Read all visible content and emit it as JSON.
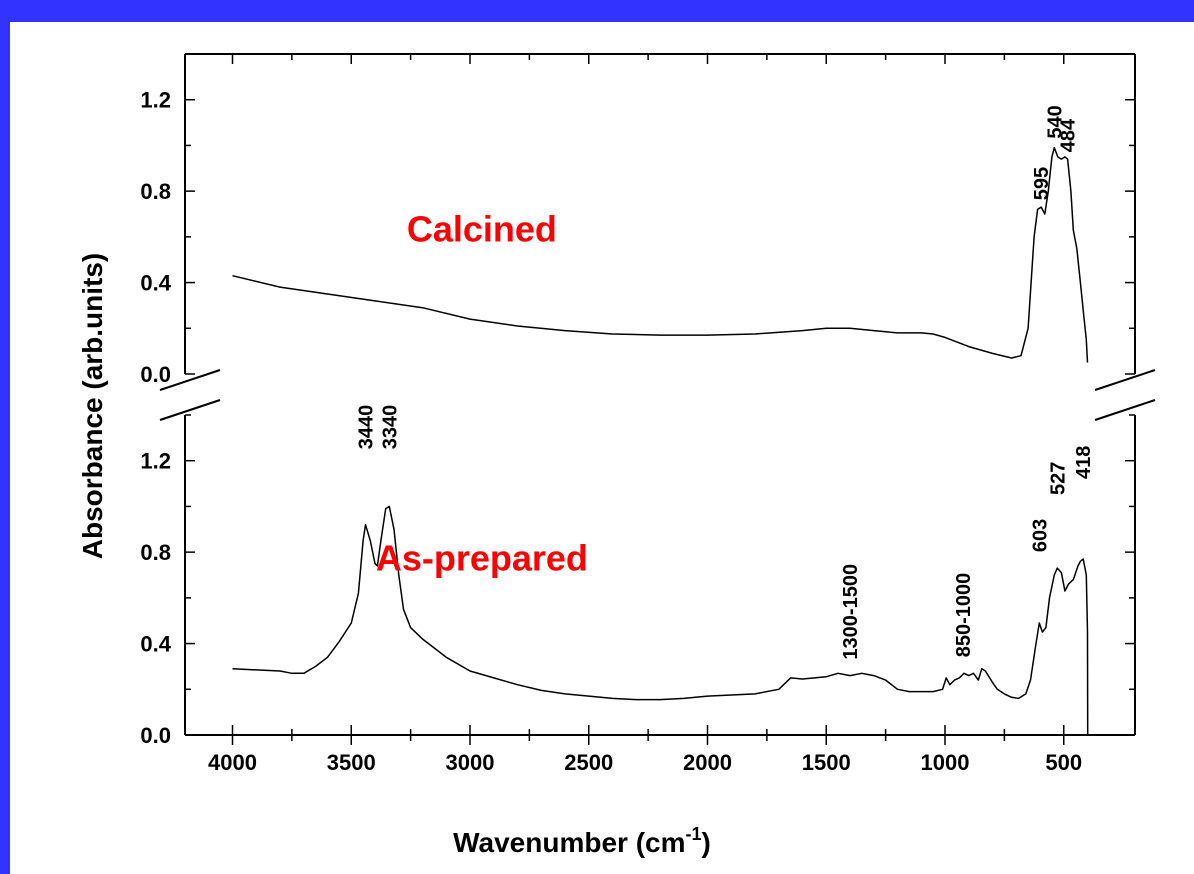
{
  "chart_data": {
    "type": "line",
    "xlabel": "Wavenumber (cm",
    "xlabel_sup": "-1",
    "xlabel_end": ")",
    "ylabel": "Absorbance (arb.units)",
    "xlim": [
      4200,
      200
    ],
    "x_reversed": true,
    "x_ticks": [
      "4000",
      "3500",
      "3000",
      "2500",
      "2000",
      "1500",
      "1000",
      "500"
    ],
    "grid": false,
    "broken_y_axis": true,
    "panels": [
      {
        "name": "upper",
        "ylim": [
          0,
          1.4
        ],
        "y_ticks": [
          "0.0",
          "0.4",
          "0.8",
          "1.2"
        ]
      },
      {
        "name": "lower",
        "ylim": [
          0,
          1.4
        ],
        "y_ticks": [
          "0.0",
          "0.4",
          "0.8",
          "1.2"
        ]
      }
    ],
    "series": [
      {
        "name": "Calcined",
        "panel": 0,
        "color": "#ff0000",
        "points": [
          [
            4000,
            0.43
          ],
          [
            3800,
            0.38
          ],
          [
            3600,
            0.35
          ],
          [
            3400,
            0.32
          ],
          [
            3200,
            0.29
          ],
          [
            3000,
            0.24
          ],
          [
            2800,
            0.21
          ],
          [
            2600,
            0.19
          ],
          [
            2400,
            0.175
          ],
          [
            2200,
            0.17
          ],
          [
            2000,
            0.17
          ],
          [
            1800,
            0.175
          ],
          [
            1600,
            0.19
          ],
          [
            1500,
            0.2
          ],
          [
            1400,
            0.2
          ],
          [
            1300,
            0.19
          ],
          [
            1200,
            0.18
          ],
          [
            1100,
            0.18
          ],
          [
            1050,
            0.175
          ],
          [
            1000,
            0.16
          ],
          [
            900,
            0.12
          ],
          [
            800,
            0.09
          ],
          [
            720,
            0.07
          ],
          [
            680,
            0.08
          ],
          [
            650,
            0.2
          ],
          [
            625,
            0.6
          ],
          [
            610,
            0.72
          ],
          [
            595,
            0.73
          ],
          [
            580,
            0.7
          ],
          [
            565,
            0.8
          ],
          [
            550,
            0.95
          ],
          [
            540,
            0.99
          ],
          [
            525,
            0.95
          ],
          [
            510,
            0.94
          ],
          [
            495,
            0.95
          ],
          [
            484,
            0.94
          ],
          [
            470,
            0.8
          ],
          [
            460,
            0.63
          ],
          [
            445,
            0.55
          ],
          [
            430,
            0.4
          ],
          [
            415,
            0.25
          ],
          [
            405,
            0.15
          ],
          [
            400,
            0.05
          ]
        ]
      },
      {
        "name": "As-prepared",
        "panel": 1,
        "color": "#ff0000",
        "points": [
          [
            4000,
            0.29
          ],
          [
            3900,
            0.285
          ],
          [
            3800,
            0.28
          ],
          [
            3750,
            0.27
          ],
          [
            3700,
            0.27
          ],
          [
            3650,
            0.3
          ],
          [
            3600,
            0.34
          ],
          [
            3550,
            0.41
          ],
          [
            3500,
            0.49
          ],
          [
            3470,
            0.62
          ],
          [
            3450,
            0.85
          ],
          [
            3440,
            0.92
          ],
          [
            3420,
            0.85
          ],
          [
            3400,
            0.75
          ],
          [
            3390,
            0.74
          ],
          [
            3375,
            0.85
          ],
          [
            3355,
            0.99
          ],
          [
            3340,
            1.0
          ],
          [
            3320,
            0.9
          ],
          [
            3300,
            0.7
          ],
          [
            3280,
            0.55
          ],
          [
            3250,
            0.47
          ],
          [
            3200,
            0.42
          ],
          [
            3150,
            0.38
          ],
          [
            3100,
            0.34
          ],
          [
            3000,
            0.28
          ],
          [
            2900,
            0.25
          ],
          [
            2800,
            0.22
          ],
          [
            2700,
            0.195
          ],
          [
            2600,
            0.18
          ],
          [
            2500,
            0.17
          ],
          [
            2400,
            0.16
          ],
          [
            2300,
            0.155
          ],
          [
            2200,
            0.155
          ],
          [
            2100,
            0.16
          ],
          [
            2000,
            0.17
          ],
          [
            1900,
            0.175
          ],
          [
            1800,
            0.18
          ],
          [
            1700,
            0.2
          ],
          [
            1650,
            0.25
          ],
          [
            1600,
            0.245
          ],
          [
            1550,
            0.25
          ],
          [
            1500,
            0.255
          ],
          [
            1450,
            0.27
          ],
          [
            1400,
            0.26
          ],
          [
            1350,
            0.27
          ],
          [
            1300,
            0.26
          ],
          [
            1250,
            0.24
          ],
          [
            1200,
            0.2
          ],
          [
            1150,
            0.19
          ],
          [
            1100,
            0.19
          ],
          [
            1050,
            0.19
          ],
          [
            1010,
            0.2
          ],
          [
            995,
            0.25
          ],
          [
            980,
            0.22
          ],
          [
            960,
            0.24
          ],
          [
            940,
            0.25
          ],
          [
            920,
            0.27
          ],
          [
            900,
            0.26
          ],
          [
            880,
            0.27
          ],
          [
            860,
            0.24
          ],
          [
            845,
            0.29
          ],
          [
            830,
            0.28
          ],
          [
            800,
            0.23
          ],
          [
            780,
            0.2
          ],
          [
            750,
            0.18
          ],
          [
            720,
            0.165
          ],
          [
            690,
            0.16
          ],
          [
            660,
            0.18
          ],
          [
            640,
            0.24
          ],
          [
            620,
            0.38
          ],
          [
            603,
            0.49
          ],
          [
            590,
            0.45
          ],
          [
            575,
            0.47
          ],
          [
            560,
            0.6
          ],
          [
            540,
            0.7
          ],
          [
            527,
            0.73
          ],
          [
            510,
            0.71
          ],
          [
            495,
            0.63
          ],
          [
            480,
            0.66
          ],
          [
            460,
            0.68
          ],
          [
            440,
            0.74
          ],
          [
            430,
            0.76
          ],
          [
            418,
            0.77
          ],
          [
            405,
            0.7
          ],
          [
            400,
            0.45
          ],
          [
            399,
            0.0
          ]
        ]
      }
    ],
    "annotations": [
      {
        "text": "595",
        "x": 595,
        "panel": 0,
        "y": 0.76
      },
      {
        "text": "540",
        "x": 540,
        "panel": 0,
        "y": 1.03
      },
      {
        "text": "484",
        "x": 484,
        "panel": 0,
        "y": 0.97
      },
      {
        "text": "3440",
        "x": 3440,
        "panel": 1,
        "y": 1.25
      },
      {
        "text": "3340",
        "x": 3340,
        "panel": 1,
        "y": 1.25
      },
      {
        "text": "1300-1500",
        "x": 1400,
        "panel": 1,
        "y": 0.33
      },
      {
        "text": "850-1000",
        "x": 925,
        "panel": 1,
        "y": 0.34
      },
      {
        "text": "603",
        "x": 603,
        "panel": 1,
        "y": 0.8
      },
      {
        "text": "527",
        "x": 527,
        "panel": 1,
        "y": 1.05
      },
      {
        "text": "418",
        "x": 418,
        "panel": 1,
        "y": 1.12
      }
    ],
    "curve_labels": [
      {
        "text": "Calcined",
        "x": 2950,
        "panel": 0,
        "y": 0.58
      },
      {
        "text": "As-prepared",
        "x": 2950,
        "panel": 1,
        "y": 0.72
      }
    ]
  }
}
